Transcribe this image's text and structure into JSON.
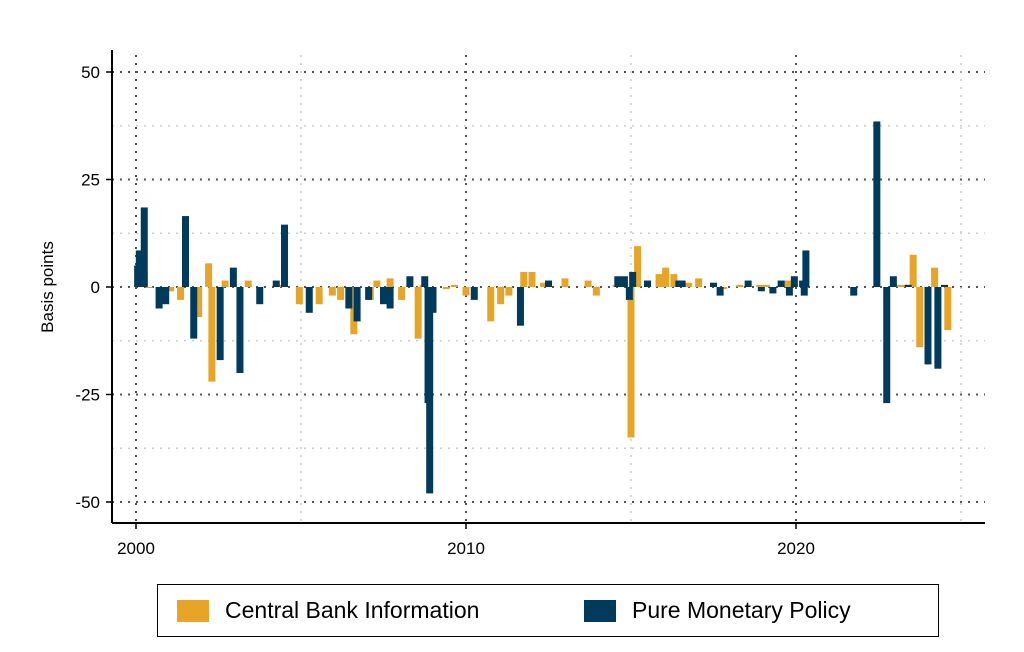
{
  "chart_data": {
    "type": "bar",
    "xlim": [
      2000,
      2025
    ],
    "ylim": [
      -50,
      50
    ],
    "ylabel": "Basis points",
    "x_ticks": [
      "2000",
      "2010",
      "2020"
    ],
    "y_ticks": [
      "50",
      "25",
      "0",
      "-25",
      "-50"
    ],
    "grid": true,
    "legend_position": "bottom",
    "colors": {
      "cbi": "#E8A427",
      "mp": "#003A5D"
    },
    "series": [
      {
        "name": "Central Bank Information",
        "color": "#E8A427",
        "points": [
          {
            "x": 2000.1,
            "y": 3
          },
          {
            "x": 2000.25,
            "y": 3.5
          },
          {
            "x": 2000.4,
            "y": 0
          },
          {
            "x": 2001.05,
            "y": -1
          },
          {
            "x": 2001.35,
            "y": -3
          },
          {
            "x": 2001.9,
            "y": -7
          },
          {
            "x": 2002.2,
            "y": 5.5
          },
          {
            "x": 2002.3,
            "y": -22
          },
          {
            "x": 2002.7,
            "y": 1.5
          },
          {
            "x": 2003.4,
            "y": 1.5
          },
          {
            "x": 2004.4,
            "y": 0.5
          },
          {
            "x": 2004.95,
            "y": -4
          },
          {
            "x": 2005.55,
            "y": -4
          },
          {
            "x": 2005.95,
            "y": -2
          },
          {
            "x": 2006.2,
            "y": -3
          },
          {
            "x": 2006.6,
            "y": -11
          },
          {
            "x": 2007.1,
            "y": -3
          },
          {
            "x": 2007.3,
            "y": 1.5
          },
          {
            "x": 2007.7,
            "y": 2
          },
          {
            "x": 2008.05,
            "y": -3
          },
          {
            "x": 2008.55,
            "y": -12
          },
          {
            "x": 2008.7,
            "y": 0.5
          },
          {
            "x": 2009.4,
            "y": -0.5
          },
          {
            "x": 2009.65,
            "y": 0.5
          },
          {
            "x": 2010.0,
            "y": -2
          },
          {
            "x": 2010.75,
            "y": -8
          },
          {
            "x": 2011.05,
            "y": -4
          },
          {
            "x": 2011.3,
            "y": -2
          },
          {
            "x": 2011.75,
            "y": 3.5
          },
          {
            "x": 2012.0,
            "y": 3.5
          },
          {
            "x": 2012.35,
            "y": 1
          },
          {
            "x": 2013.0,
            "y": 2
          },
          {
            "x": 2013.7,
            "y": 1.5
          },
          {
            "x": 2013.95,
            "y": -2
          },
          {
            "x": 2014.55,
            "y": 0.5
          },
          {
            "x": 2015.0,
            "y": -35
          },
          {
            "x": 2015.2,
            "y": 9.5
          },
          {
            "x": 2015.85,
            "y": 3
          },
          {
            "x": 2016.05,
            "y": 4.5
          },
          {
            "x": 2016.3,
            "y": 3
          },
          {
            "x": 2016.75,
            "y": 1
          },
          {
            "x": 2017.05,
            "y": 2
          },
          {
            "x": 2017.8,
            "y": -0.5
          },
          {
            "x": 2018.3,
            "y": 0.5
          },
          {
            "x": 2018.9,
            "y": 0.5
          },
          {
            "x": 2019.1,
            "y": 0.5
          },
          {
            "x": 2019.75,
            "y": 1.5
          },
          {
            "x": 2020.25,
            "y": 0.5
          },
          {
            "x": 2023.1,
            "y": 0.5
          },
          {
            "x": 2023.3,
            "y": 0.5
          },
          {
            "x": 2023.55,
            "y": 7.5
          },
          {
            "x": 2023.75,
            "y": -14
          },
          {
            "x": 2024.2,
            "y": 4.5
          },
          {
            "x": 2024.6,
            "y": -10
          }
        ]
      },
      {
        "name": "Pure Monetary Policy",
        "color": "#003A5D",
        "points": [
          {
            "x": 2000.05,
            "y": 5
          },
          {
            "x": 2000.1,
            "y": 8.5
          },
          {
            "x": 2000.25,
            "y": 18.5
          },
          {
            "x": 2000.7,
            "y": -5
          },
          {
            "x": 2000.9,
            "y": -4
          },
          {
            "x": 2001.5,
            "y": 16.5
          },
          {
            "x": 2001.75,
            "y": -12
          },
          {
            "x": 2002.55,
            "y": -17
          },
          {
            "x": 2002.95,
            "y": 4.5
          },
          {
            "x": 2003.15,
            "y": -20
          },
          {
            "x": 2003.75,
            "y": -4
          },
          {
            "x": 2004.25,
            "y": 1.5
          },
          {
            "x": 2004.5,
            "y": 14.5
          },
          {
            "x": 2005.25,
            "y": -6
          },
          {
            "x": 2006.45,
            "y": -5
          },
          {
            "x": 2006.7,
            "y": -8
          },
          {
            "x": 2007.05,
            "y": -3
          },
          {
            "x": 2007.5,
            "y": -4
          },
          {
            "x": 2007.7,
            "y": -5
          },
          {
            "x": 2008.3,
            "y": 2.5
          },
          {
            "x": 2008.75,
            "y": 2.5
          },
          {
            "x": 2008.85,
            "y": -27
          },
          {
            "x": 2008.9,
            "y": -48
          },
          {
            "x": 2009.0,
            "y": -6
          },
          {
            "x": 2010.25,
            "y": -3
          },
          {
            "x": 2011.65,
            "y": -9
          },
          {
            "x": 2012.5,
            "y": 1.5
          },
          {
            "x": 2014.6,
            "y": 2.5
          },
          {
            "x": 2014.8,
            "y": 2.5
          },
          {
            "x": 2014.95,
            "y": -3
          },
          {
            "x": 2015.05,
            "y": 3.5
          },
          {
            "x": 2015.5,
            "y": 1.5
          },
          {
            "x": 2016.45,
            "y": 1.5
          },
          {
            "x": 2016.55,
            "y": 1.5
          },
          {
            "x": 2017.5,
            "y": 1
          },
          {
            "x": 2017.7,
            "y": -2
          },
          {
            "x": 2018.55,
            "y": 1.5
          },
          {
            "x": 2018.95,
            "y": -1
          },
          {
            "x": 2019.3,
            "y": -1.5
          },
          {
            "x": 2019.55,
            "y": 1.5
          },
          {
            "x": 2019.8,
            "y": -2
          },
          {
            "x": 2019.95,
            "y": 2.5
          },
          {
            "x": 2020.2,
            "y": 1.5
          },
          {
            "x": 2020.25,
            "y": -2
          },
          {
            "x": 2020.3,
            "y": 8.5
          },
          {
            "x": 2021.75,
            "y": -2
          },
          {
            "x": 2022.45,
            "y": 38.5
          },
          {
            "x": 2022.75,
            "y": -27
          },
          {
            "x": 2022.95,
            "y": 2.5
          },
          {
            "x": 2023.4,
            "y": 0.5
          },
          {
            "x": 2024.0,
            "y": -18
          },
          {
            "x": 2024.3,
            "y": -19
          },
          {
            "x": 2024.5,
            "y": 0.5
          }
        ]
      }
    ]
  }
}
